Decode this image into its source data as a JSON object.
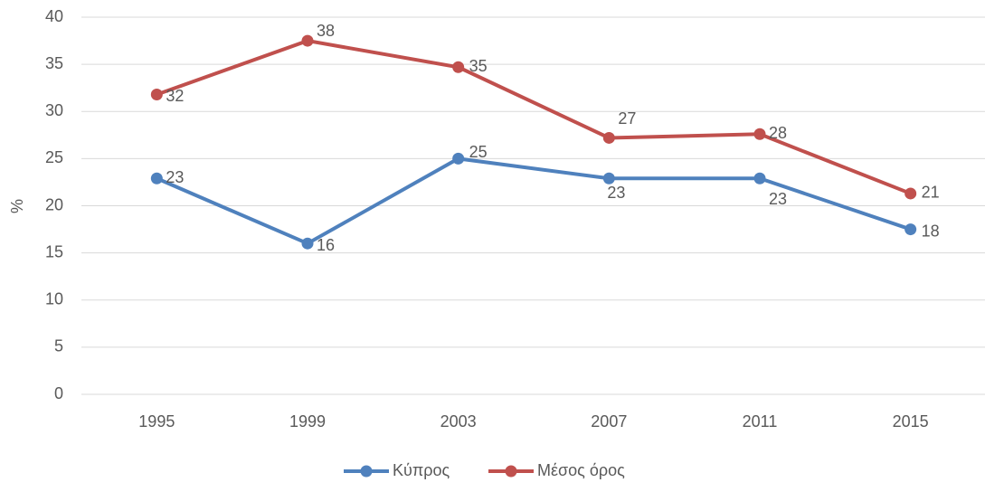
{
  "chart_data": {
    "type": "line",
    "y_label": "%",
    "categories": [
      "1995",
      "1999",
      "2003",
      "2007",
      "2011",
      "2015"
    ],
    "series": [
      {
        "name": "Κύπρος",
        "color": "#4f81bd",
        "values": [
          22.9,
          16,
          25,
          22.9,
          22.9,
          17.5
        ],
        "value_labels": [
          "23",
          "16",
          "25",
          "23",
          "23",
          "18"
        ]
      },
      {
        "name": "Μέσος όρος",
        "color": "#c0504d",
        "values": [
          31.8,
          37.5,
          34.7,
          27.2,
          27.6,
          21.3
        ],
        "value_labels": [
          "32",
          "38",
          "35",
          "27",
          "28",
          "21"
        ]
      }
    ],
    "ylim": [
      0,
      40
    ],
    "yticks": [
      0,
      5,
      10,
      15,
      20,
      25,
      30,
      35,
      40
    ],
    "grid": true,
    "legend": "bottom"
  }
}
